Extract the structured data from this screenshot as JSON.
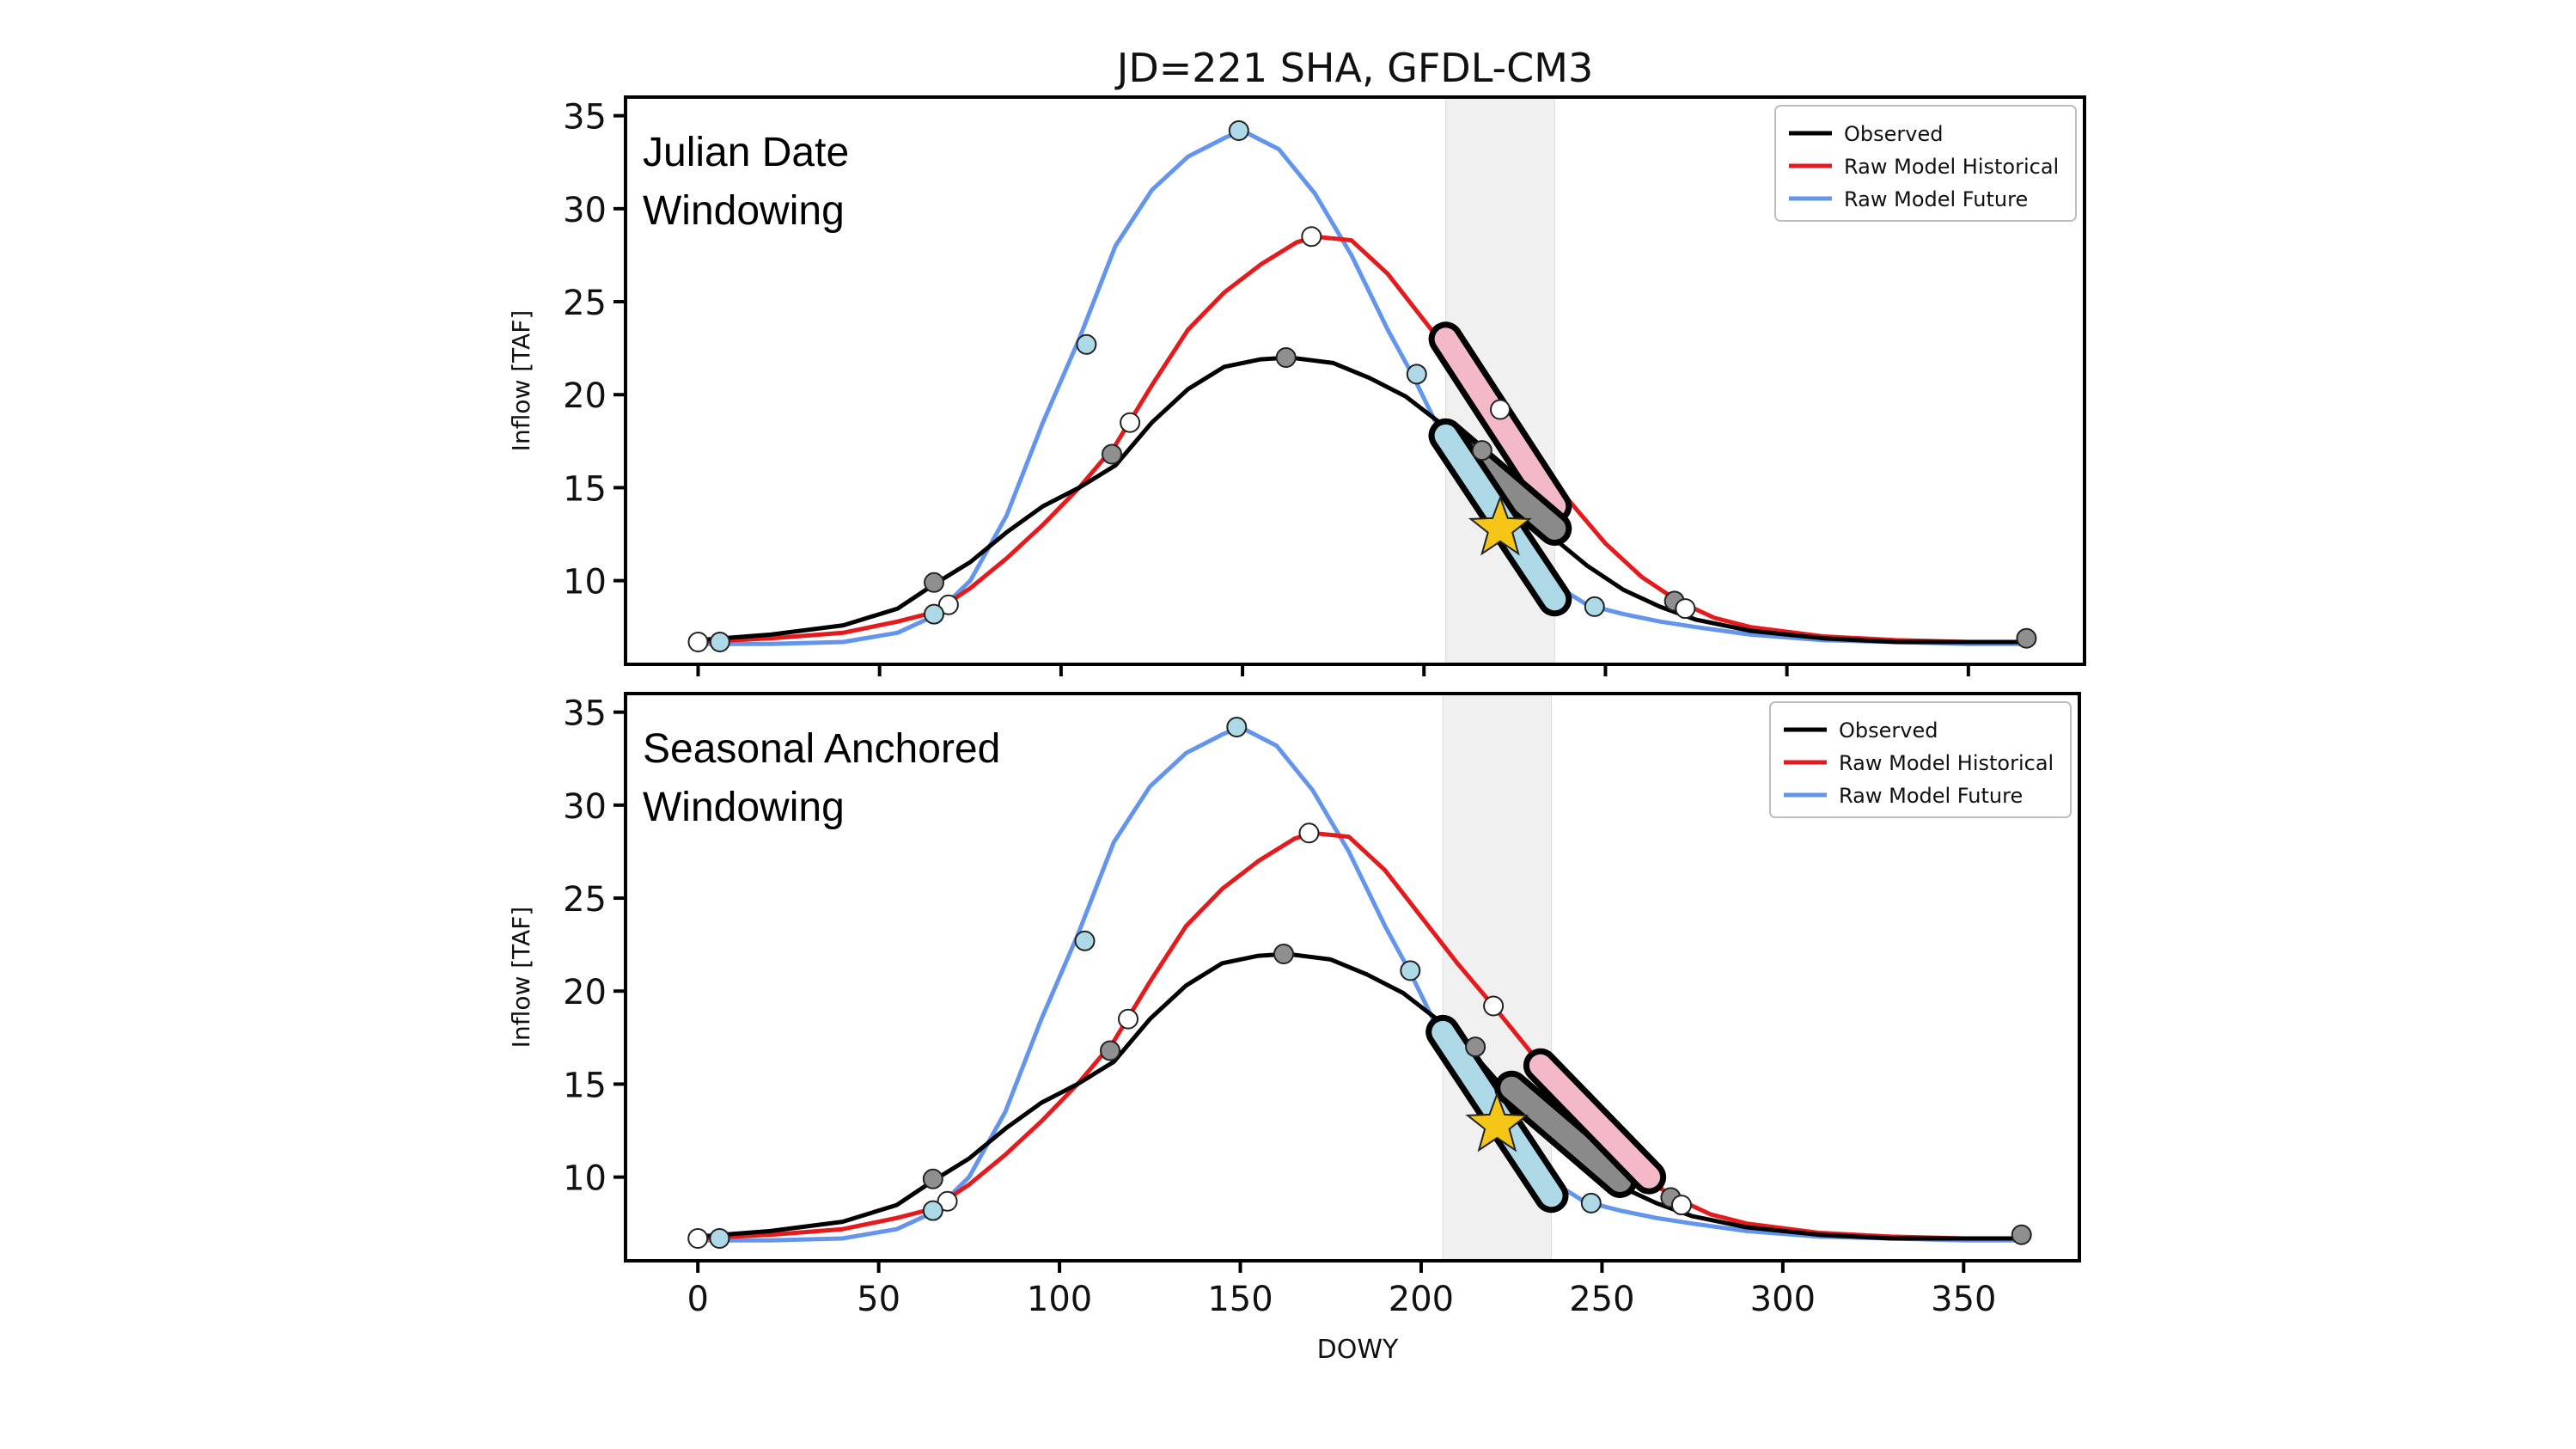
{
  "figure": {
    "title": "JD=221 SHA, GFDL-CM3",
    "xlabel": "DOWY"
  },
  "colors": {
    "observed": "#000000",
    "historical": "#e41a1c",
    "future": "#6495ed",
    "window_band": "#f0f0f0",
    "star": "#f5c518",
    "marker_observed": "#8f8f8f",
    "marker_historical": "#ffffff",
    "marker_future": "#add8e6",
    "highlight_observed": "#8a8a8a",
    "highlight_historical": "#f4b9c6",
    "highlight_future": "#add8e6"
  },
  "legend": {
    "placement": "top-right",
    "entries": [
      "Observed",
      "Raw Model Historical",
      "Raw Model Future"
    ]
  },
  "chart_data": [
    {
      "type": "line",
      "inset_label": [
        "Julian Date",
        "Windowing"
      ],
      "ylabel": "Inflow [TAF]",
      "xlim": [
        -20,
        382
      ],
      "ylim": [
        5.5,
        36
      ],
      "xticks": [
        0,
        50,
        100,
        150,
        200,
        250,
        300,
        350
      ],
      "yticks": [
        10,
        15,
        20,
        25,
        30,
        35
      ],
      "show_xtick_labels": false,
      "grid": false,
      "window": [
        206,
        236
      ],
      "target": {
        "x": 221,
        "y": 12.8
      },
      "series": [
        {
          "name": "Observed",
          "key": "observed",
          "x": [
            0,
            20,
            40,
            55,
            65,
            75,
            85,
            95,
            105,
            115,
            125,
            135,
            145,
            155,
            163,
            175,
            185,
            195,
            205,
            215,
            225,
            235,
            245,
            255,
            265,
            275,
            290,
            310,
            330,
            350,
            365
          ],
          "y": [
            6.8,
            7.1,
            7.6,
            8.5,
            9.8,
            11.0,
            12.6,
            14.0,
            15.0,
            16.2,
            18.5,
            20.3,
            21.5,
            21.9,
            22.0,
            21.7,
            20.9,
            19.9,
            18.4,
            16.5,
            14.3,
            12.4,
            10.8,
            9.5,
            8.6,
            7.9,
            7.3,
            6.9,
            6.7,
            6.7,
            6.7
          ]
        },
        {
          "name": "Raw Model Historical",
          "key": "historical",
          "x": [
            0,
            20,
            40,
            55,
            65,
            75,
            85,
            95,
            105,
            115,
            125,
            135,
            145,
            155,
            165,
            170,
            180,
            190,
            200,
            210,
            220,
            230,
            240,
            250,
            260,
            270,
            280,
            290,
            310,
            330,
            350,
            365
          ],
          "y": [
            6.7,
            6.9,
            7.2,
            7.8,
            8.3,
            9.6,
            11.2,
            13.0,
            15.0,
            17.3,
            20.5,
            23.5,
            25.5,
            27.0,
            28.2,
            28.5,
            28.3,
            26.5,
            24.0,
            21.5,
            19.2,
            16.8,
            14.3,
            12.0,
            10.2,
            8.9,
            8.0,
            7.5,
            7.0,
            6.8,
            6.7,
            6.7
          ]
        },
        {
          "name": "Raw Model Future",
          "key": "future",
          "x": [
            0,
            20,
            40,
            55,
            65,
            75,
            85,
            95,
            105,
            115,
            125,
            135,
            145,
            150,
            160,
            170,
            180,
            190,
            197,
            205,
            215,
            225,
            235,
            245,
            255,
            265,
            275,
            290,
            310,
            330,
            350,
            365
          ],
          "y": [
            6.6,
            6.6,
            6.7,
            7.2,
            8.1,
            10.0,
            13.5,
            18.5,
            23.0,
            28.0,
            31.0,
            32.8,
            33.8,
            34.2,
            33.2,
            30.8,
            27.5,
            23.5,
            21.0,
            17.8,
            14.5,
            11.8,
            9.9,
            8.7,
            8.2,
            7.8,
            7.5,
            7.1,
            6.8,
            6.7,
            6.6,
            6.6
          ]
        }
      ],
      "markers": {
        "observed": {
          "x": [
            65,
            114,
            162,
            216,
            269,
            366
          ],
          "y": [
            9.9,
            16.8,
            22.0,
            17.0,
            8.9,
            6.9
          ]
        },
        "historical": {
          "x": [
            0,
            69,
            119,
            169,
            221,
            272
          ],
          "y": [
            6.7,
            8.7,
            18.5,
            28.5,
            19.2,
            8.5
          ]
        },
        "future": {
          "x": [
            6,
            65,
            107,
            149,
            198,
            247
          ],
          "y": [
            6.7,
            8.2,
            22.7,
            34.2,
            21.1,
            8.6
          ]
        }
      },
      "highlights": [
        {
          "key": "historical",
          "x": [
            206,
            236
          ],
          "y": [
            23.0,
            14.0
          ]
        },
        {
          "key": "observed",
          "x": [
            206,
            236
          ],
          "y": [
            17.8,
            12.8
          ]
        },
        {
          "key": "future",
          "x": [
            206,
            236
          ],
          "y": [
            17.8,
            9.0
          ]
        }
      ]
    },
    {
      "type": "line",
      "inset_label": [
        "Seasonal Anchored",
        "Windowing"
      ],
      "ylabel": "Inflow [TAF]",
      "xlim": [
        -20,
        382
      ],
      "ylim": [
        5.5,
        36
      ],
      "xticks": [
        0,
        50,
        100,
        150,
        200,
        250,
        300,
        350
      ],
      "yticks": [
        10,
        15,
        20,
        25,
        30,
        35
      ],
      "show_xtick_labels": true,
      "grid": false,
      "window": [
        206,
        236
      ],
      "target": {
        "x": 221,
        "y": 12.8
      },
      "series": [
        {
          "name": "Observed",
          "key": "observed",
          "x": [
            0,
            20,
            40,
            55,
            65,
            75,
            85,
            95,
            105,
            115,
            125,
            135,
            145,
            155,
            163,
            175,
            185,
            195,
            205,
            215,
            225,
            235,
            245,
            255,
            265,
            275,
            290,
            310,
            330,
            350,
            365
          ],
          "y": [
            6.8,
            7.1,
            7.6,
            8.5,
            9.8,
            11.0,
            12.6,
            14.0,
            15.0,
            16.2,
            18.5,
            20.3,
            21.5,
            21.9,
            22.0,
            21.7,
            20.9,
            19.9,
            18.4,
            16.5,
            14.3,
            12.4,
            10.8,
            9.5,
            8.6,
            7.9,
            7.3,
            6.9,
            6.7,
            6.7,
            6.7
          ]
        },
        {
          "name": "Raw Model Historical",
          "key": "historical",
          "x": [
            0,
            20,
            40,
            55,
            65,
            75,
            85,
            95,
            105,
            115,
            125,
            135,
            145,
            155,
            165,
            170,
            180,
            190,
            200,
            210,
            220,
            230,
            240,
            250,
            260,
            270,
            280,
            290,
            310,
            330,
            350,
            365
          ],
          "y": [
            6.7,
            6.9,
            7.2,
            7.8,
            8.3,
            9.6,
            11.2,
            13.0,
            15.0,
            17.3,
            20.5,
            23.5,
            25.5,
            27.0,
            28.2,
            28.5,
            28.3,
            26.5,
            24.0,
            21.5,
            19.2,
            16.8,
            14.3,
            12.0,
            10.2,
            8.9,
            8.0,
            7.5,
            7.0,
            6.8,
            6.7,
            6.7
          ]
        },
        {
          "name": "Raw Model Future",
          "key": "future",
          "x": [
            0,
            20,
            40,
            55,
            65,
            75,
            85,
            95,
            105,
            115,
            125,
            135,
            145,
            150,
            160,
            170,
            180,
            190,
            197,
            205,
            215,
            225,
            235,
            245,
            255,
            265,
            275,
            290,
            310,
            330,
            350,
            365
          ],
          "y": [
            6.6,
            6.6,
            6.7,
            7.2,
            8.1,
            10.0,
            13.5,
            18.5,
            23.0,
            28.0,
            31.0,
            32.8,
            33.8,
            34.2,
            33.2,
            30.8,
            27.5,
            23.5,
            21.0,
            17.8,
            14.5,
            11.8,
            9.9,
            8.7,
            8.2,
            7.8,
            7.5,
            7.1,
            6.8,
            6.7,
            6.6,
            6.6
          ]
        }
      ],
      "markers": {
        "observed": {
          "x": [
            65,
            114,
            162,
            215,
            269,
            366
          ],
          "y": [
            9.9,
            16.8,
            22.0,
            17.0,
            8.9,
            6.9
          ]
        },
        "historical": {
          "x": [
            0,
            69,
            119,
            169,
            220,
            272
          ],
          "y": [
            6.7,
            8.7,
            18.5,
            28.5,
            19.2,
            8.5
          ]
        },
        "future": {
          "x": [
            6,
            65,
            107,
            149,
            197,
            247
          ],
          "y": [
            6.7,
            8.2,
            22.7,
            34.2,
            21.1,
            8.6
          ]
        }
      },
      "highlights": [
        {
          "key": "future",
          "x": [
            206,
            236
          ],
          "y": [
            17.8,
            9.0
          ]
        },
        {
          "key": "observed",
          "x": [
            225,
            255
          ],
          "y": [
            14.8,
            9.8
          ]
        },
        {
          "key": "historical",
          "x": [
            233,
            263
          ],
          "y": [
            16.0,
            10.0
          ]
        }
      ]
    }
  ]
}
